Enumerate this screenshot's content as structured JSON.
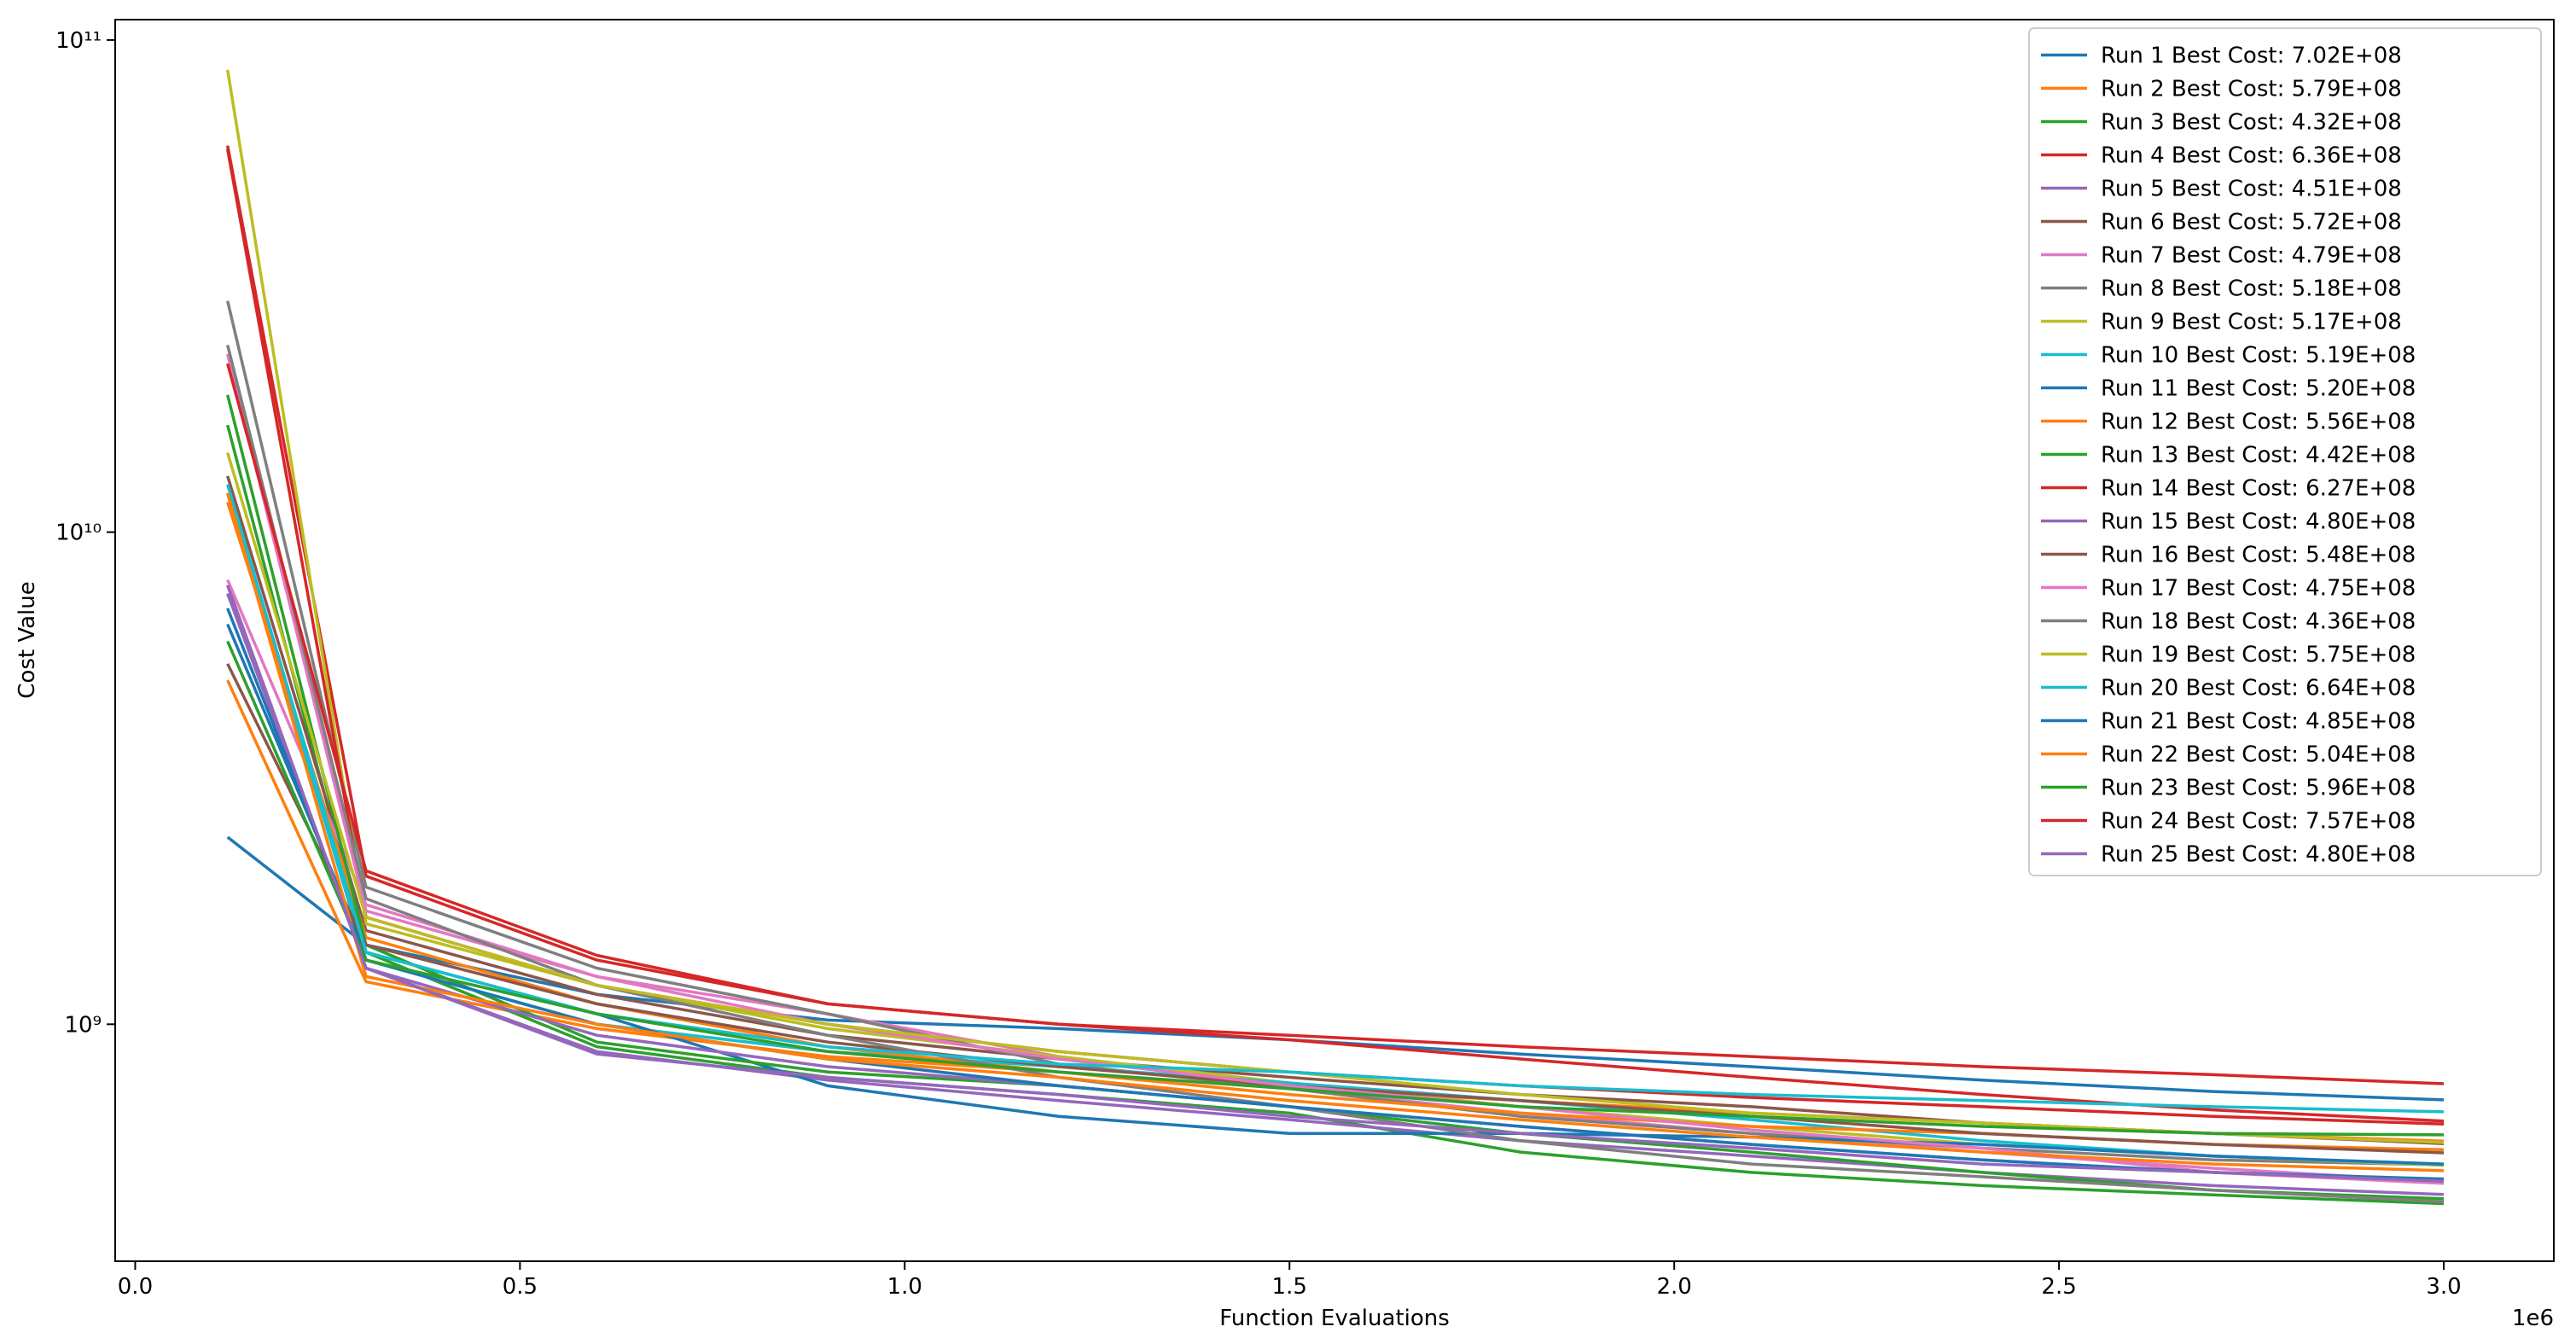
{
  "chart_data": {
    "type": "line",
    "log_y": true,
    "grid": false,
    "legend": "upper right",
    "xlabel": "Function Evaluations",
    "ylabel": "Cost Value",
    "x_offset_label": "1e6",
    "x": [
      0.12,
      0.3,
      0.6,
      0.9,
      1.2,
      1.5,
      1.8,
      2.1,
      2.4,
      2.7,
      3.0
    ],
    "xlim": [
      -0.026,
      3.143
    ],
    "xticks": [
      {
        "value": 0,
        "label": "0.0"
      },
      0.5,
      {
        "value": 1,
        "label": "1.0"
      },
      1.5,
      {
        "value": 2,
        "label": "2.0"
      },
      2.5,
      {
        "value": 3,
        "label": "3.0"
      }
    ],
    "ylim": [
      330000000,
      110000000000
    ],
    "yticks": [
      {
        "value": 1000000000.0,
        "label": "10⁹"
      },
      {
        "value": 10000000000.0,
        "label": "10¹⁰"
      },
      {
        "value": 100000000000.0,
        "label": "10¹¹"
      }
    ],
    "series": [
      {
        "name": "Run 1 Best Cost: 7.02E+08",
        "color": "#1f77b4",
        "values": [
          2400000000.0,
          1450000000.0,
          1150000000.0,
          1020000000.0,
          980000000.0,
          930000000.0,
          870000000.0,
          820000000.0,
          770000000.0,
          730000000.0,
          702000000.0
        ]
      },
      {
        "name": "Run 2 Best Cost: 5.79E+08",
        "color": "#ff7f0e",
        "values": [
          5000000000.0,
          1220000000.0,
          980000000.0,
          860000000.0,
          800000000.0,
          740000000.0,
          700000000.0,
          660000000.0,
          630000000.0,
          600000000.0,
          579000000.0
        ]
      },
      {
        "name": "Run 3 Best Cost: 4.32E+08",
        "color": "#2ca02c",
        "values": [
          16500000000.0,
          1400000000.0,
          900000000.0,
          780000000.0,
          720000000.0,
          660000000.0,
          550000000.0,
          500000000.0,
          470000000.0,
          450000000.0,
          432000000.0
        ]
      },
      {
        "name": "Run 4 Best Cost: 6.36E+08",
        "color": "#d62728",
        "values": [
          61000000000.0,
          2000000000.0,
          1350000000.0,
          1100000000.0,
          1000000000.0,
          930000000.0,
          850000000.0,
          780000000.0,
          720000000.0,
          670000000.0,
          636000000.0
        ]
      },
      {
        "name": "Run 5 Best Cost: 4.51E+08",
        "color": "#9467bd",
        "values": [
          7800000000.0,
          1300000000.0,
          880000000.0,
          770000000.0,
          700000000.0,
          640000000.0,
          580000000.0,
          540000000.0,
          500000000.0,
          470000000.0,
          451000000.0
        ]
      },
      {
        "name": "Run 6 Best Cost: 5.72E+08",
        "color": "#8c564b",
        "values": [
          13000000000.0,
          1550000000.0,
          1150000000.0,
          950000000.0,
          850000000.0,
          780000000.0,
          720000000.0,
          680000000.0,
          630000000.0,
          600000000.0,
          572000000.0
        ]
      },
      {
        "name": "Run 7 Best Cost: 4.79E+08",
        "color": "#e377c2",
        "values": [
          8000000000.0,
          1750000000.0,
          1250000000.0,
          1050000000.0,
          860000000.0,
          740000000.0,
          660000000.0,
          600000000.0,
          550000000.0,
          510000000.0,
          479000000.0
        ]
      },
      {
        "name": "Run 8 Best Cost: 5.18E+08",
        "color": "#7f7f7f",
        "values": [
          29500000000.0,
          1900000000.0,
          1300000000.0,
          1050000000.0,
          830000000.0,
          740000000.0,
          650000000.0,
          600000000.0,
          560000000.0,
          530000000.0,
          518000000.0
        ]
      },
      {
        "name": "Run 9 Best Cost: 5.17E+08",
        "color": "#bcbd22",
        "values": [
          87000000000.0,
          1600000000.0,
          1200000000.0,
          980000000.0,
          860000000.0,
          760000000.0,
          680000000.0,
          620000000.0,
          570000000.0,
          540000000.0,
          517000000.0
        ]
      },
      {
        "name": "Run 10 Best Cost: 5.19E+08",
        "color": "#17becf",
        "values": [
          12000000000.0,
          1350000000.0,
          1000000000.0,
          880000000.0,
          820000000.0,
          760000000.0,
          700000000.0,
          640000000.0,
          580000000.0,
          540000000.0,
          519000000.0
        ]
      },
      {
        "name": "Run 11 Best Cost: 5.20E+08",
        "color": "#1f77b4",
        "values": [
          6500000000.0,
          1400000000.0,
          1050000000.0,
          750000000.0,
          650000000.0,
          600000000.0,
          600000000.0,
          590000000.0,
          570000000.0,
          540000000.0,
          520000000.0
        ]
      },
      {
        "name": "Run 12 Best Cost: 5.56E+08",
        "color": "#ff7f0e",
        "values": [
          11500000000.0,
          1500000000.0,
          1100000000.0,
          900000000.0,
          800000000.0,
          720000000.0,
          660000000.0,
          620000000.0,
          600000000.0,
          570000000.0,
          556000000.0
        ]
      },
      {
        "name": "Run 13 Best Cost: 4.42E+08",
        "color": "#2ca02c",
        "values": [
          19000000000.0,
          1450000000.0,
          920000000.0,
          800000000.0,
          750000000.0,
          680000000.0,
          600000000.0,
          550000000.0,
          500000000.0,
          460000000.0,
          442000000.0
        ]
      },
      {
        "name": "Run 14 Best Cost: 6.27E+08",
        "color": "#d62728",
        "values": [
          60000000000.0,
          1650000000.0,
          1200000000.0,
          1000000000.0,
          880000000.0,
          800000000.0,
          750000000.0,
          710000000.0,
          680000000.0,
          650000000.0,
          627000000.0
        ]
      },
      {
        "name": "Run 15 Best Cost: 4.80E+08",
        "color": "#9467bd",
        "values": [
          7500000000.0,
          1300000000.0,
          950000000.0,
          820000000.0,
          750000000.0,
          680000000.0,
          620000000.0,
          570000000.0,
          530000000.0,
          500000000.0,
          480000000.0
        ]
      },
      {
        "name": "Run 16 Best Cost: 5.48E+08",
        "color": "#8c564b",
        "values": [
          5400000000.0,
          1450000000.0,
          1100000000.0,
          920000000.0,
          820000000.0,
          750000000.0,
          700000000.0,
          650000000.0,
          600000000.0,
          570000000.0,
          548000000.0
        ]
      },
      {
        "name": "Run 17 Best Cost: 4.75E+08",
        "color": "#e377c2",
        "values": [
          23000000000.0,
          1700000000.0,
          1250000000.0,
          1000000000.0,
          850000000.0,
          750000000.0,
          680000000.0,
          610000000.0,
          560000000.0,
          500000000.0,
          475000000.0
        ]
      },
      {
        "name": "Run 18 Best Cost: 4.36E+08",
        "color": "#7f7f7f",
        "values": [
          24000000000.0,
          1800000000.0,
          1200000000.0,
          950000000.0,
          780000000.0,
          680000000.0,
          580000000.0,
          520000000.0,
          490000000.0,
          460000000.0,
          436000000.0
        ]
      },
      {
        "name": "Run 19 Best Cost: 5.75E+08",
        "color": "#bcbd22",
        "values": [
          14500000000.0,
          1650000000.0,
          1200000000.0,
          1000000000.0,
          880000000.0,
          800000000.0,
          720000000.0,
          660000000.0,
          630000000.0,
          600000000.0,
          575000000.0
        ]
      },
      {
        "name": "Run 20 Best Cost: 6.64E+08",
        "color": "#17becf",
        "values": [
          12500000000.0,
          1400000000.0,
          1050000000.0,
          900000000.0,
          830000000.0,
          800000000.0,
          750000000.0,
          720000000.0,
          700000000.0,
          680000000.0,
          664000000.0
        ]
      },
      {
        "name": "Run 21 Best Cost: 4.85E+08",
        "color": "#1f77b4",
        "values": [
          7000000000.0,
          1350000000.0,
          1000000000.0,
          850000000.0,
          750000000.0,
          680000000.0,
          620000000.0,
          570000000.0,
          530000000.0,
          500000000.0,
          485000000.0
        ]
      },
      {
        "name": "Run 22 Best Cost: 5.04E+08",
        "color": "#ff7f0e",
        "values": [
          12000000000.0,
          1250000000.0,
          1000000000.0,
          850000000.0,
          780000000.0,
          700000000.0,
          640000000.0,
          590000000.0,
          550000000.0,
          520000000.0,
          504000000.0
        ]
      },
      {
        "name": "Run 23 Best Cost: 5.96E+08",
        "color": "#2ca02c",
        "values": [
          6000000000.0,
          1350000000.0,
          1050000000.0,
          880000000.0,
          800000000.0,
          740000000.0,
          680000000.0,
          650000000.0,
          620000000.0,
          600000000.0,
          596000000.0
        ]
      },
      {
        "name": "Run 24 Best Cost: 7.57E+08",
        "color": "#d62728",
        "values": [
          22000000000.0,
          2050000000.0,
          1380000000.0,
          1100000000.0,
          1000000000.0,
          950000000.0,
          900000000.0,
          860000000.0,
          820000000.0,
          790000000.0,
          757000000.0
        ]
      },
      {
        "name": "Run 25 Best Cost: 4.80E+08",
        "color": "#9467bd",
        "values": [
          7800000000.0,
          1300000000.0,
          870000000.0,
          780000000.0,
          720000000.0,
          650000000.0,
          600000000.0,
          560000000.0,
          520000000.0,
          500000000.0,
          480000000.0
        ]
      }
    ]
  }
}
